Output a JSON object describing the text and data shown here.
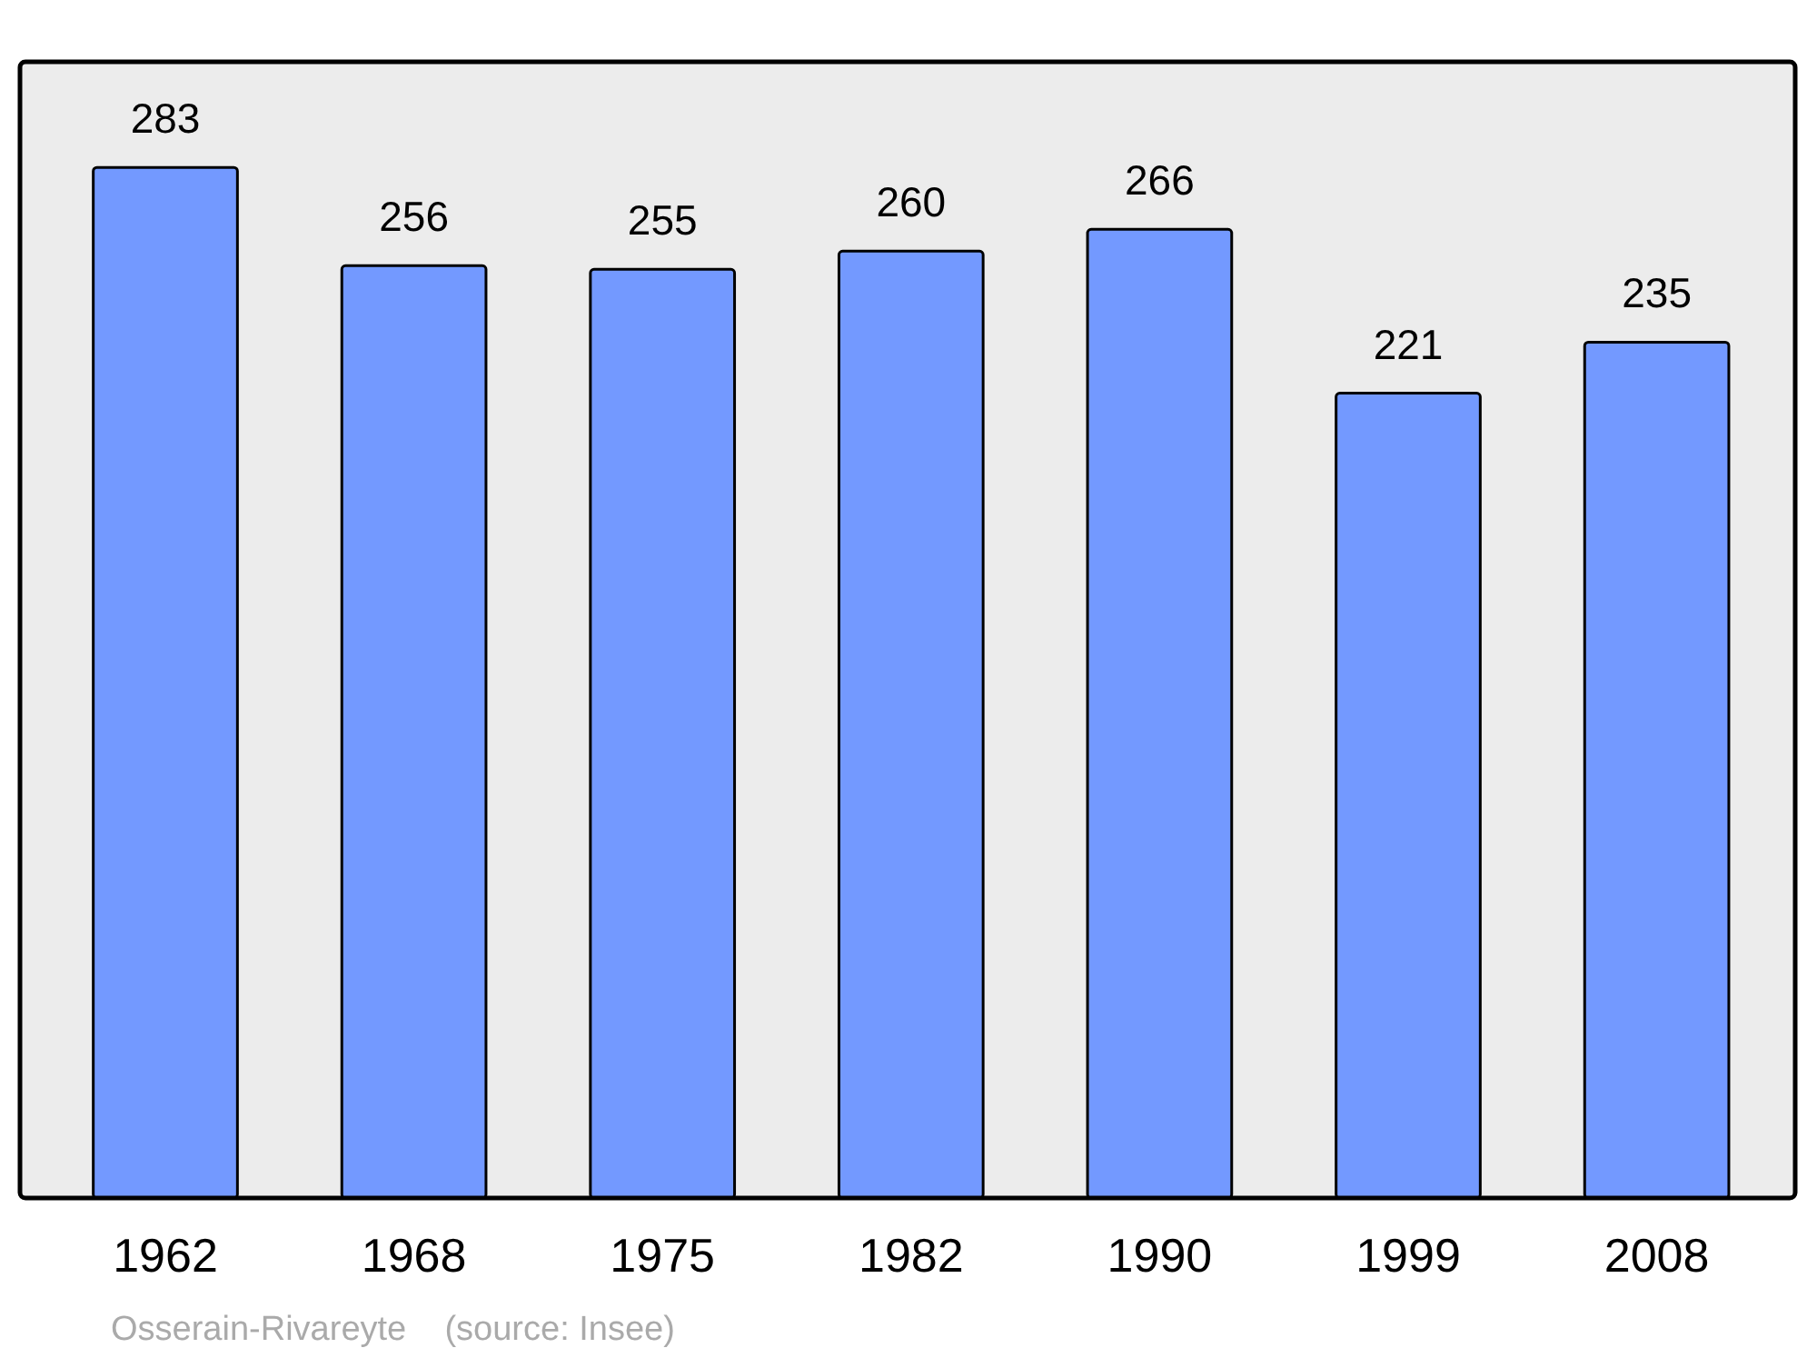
{
  "chart_data": {
    "type": "bar",
    "categories": [
      "1962",
      "1968",
      "1975",
      "1982",
      "1990",
      "1999",
      "2008"
    ],
    "values": [
      283,
      256,
      255,
      260,
      266,
      221,
      235
    ],
    "color": "#7399ff",
    "ylim": [
      0,
      312
    ],
    "tick_labels": "x",
    "data_labels": true,
    "annotations": [
      "Osserain-Rivareyte    (source: Insee)"
    ]
  }
}
